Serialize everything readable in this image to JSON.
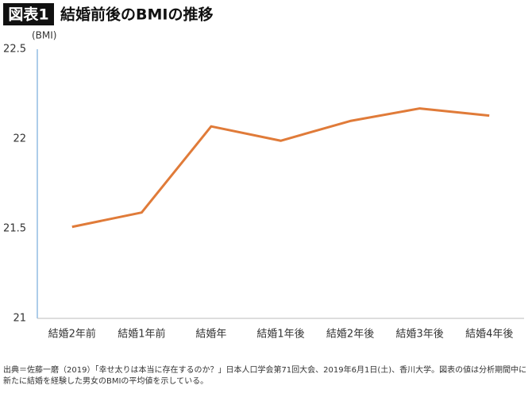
{
  "chart_data": {
    "type": "line",
    "badge": "図表1",
    "title": "結婚前後のBMIの推移",
    "y_label": "(BMI)",
    "categories": [
      "結婚2年前",
      "結婚1年前",
      "結婚年",
      "結婚1年後",
      "結婚2年後",
      "結婚3年後",
      "結婚4年後"
    ],
    "values": [
      21.51,
      21.59,
      22.07,
      21.99,
      22.1,
      22.17,
      22.13
    ],
    "color": "#e07b39",
    "ylim": [
      21,
      22.5
    ],
    "yticks": [
      21,
      21.5,
      22,
      22.5
    ],
    "grid": false,
    "notes": [
      "出典＝佐藤一磨（2019）「幸せ太りは本当に存在するのか？」日本人口学会第71回大会、2019年6月1日(土)、香川大学。図表の値は分析期間中に",
      "新たに結婚を経験した男女のBMIの平均値を示している。"
    ]
  }
}
